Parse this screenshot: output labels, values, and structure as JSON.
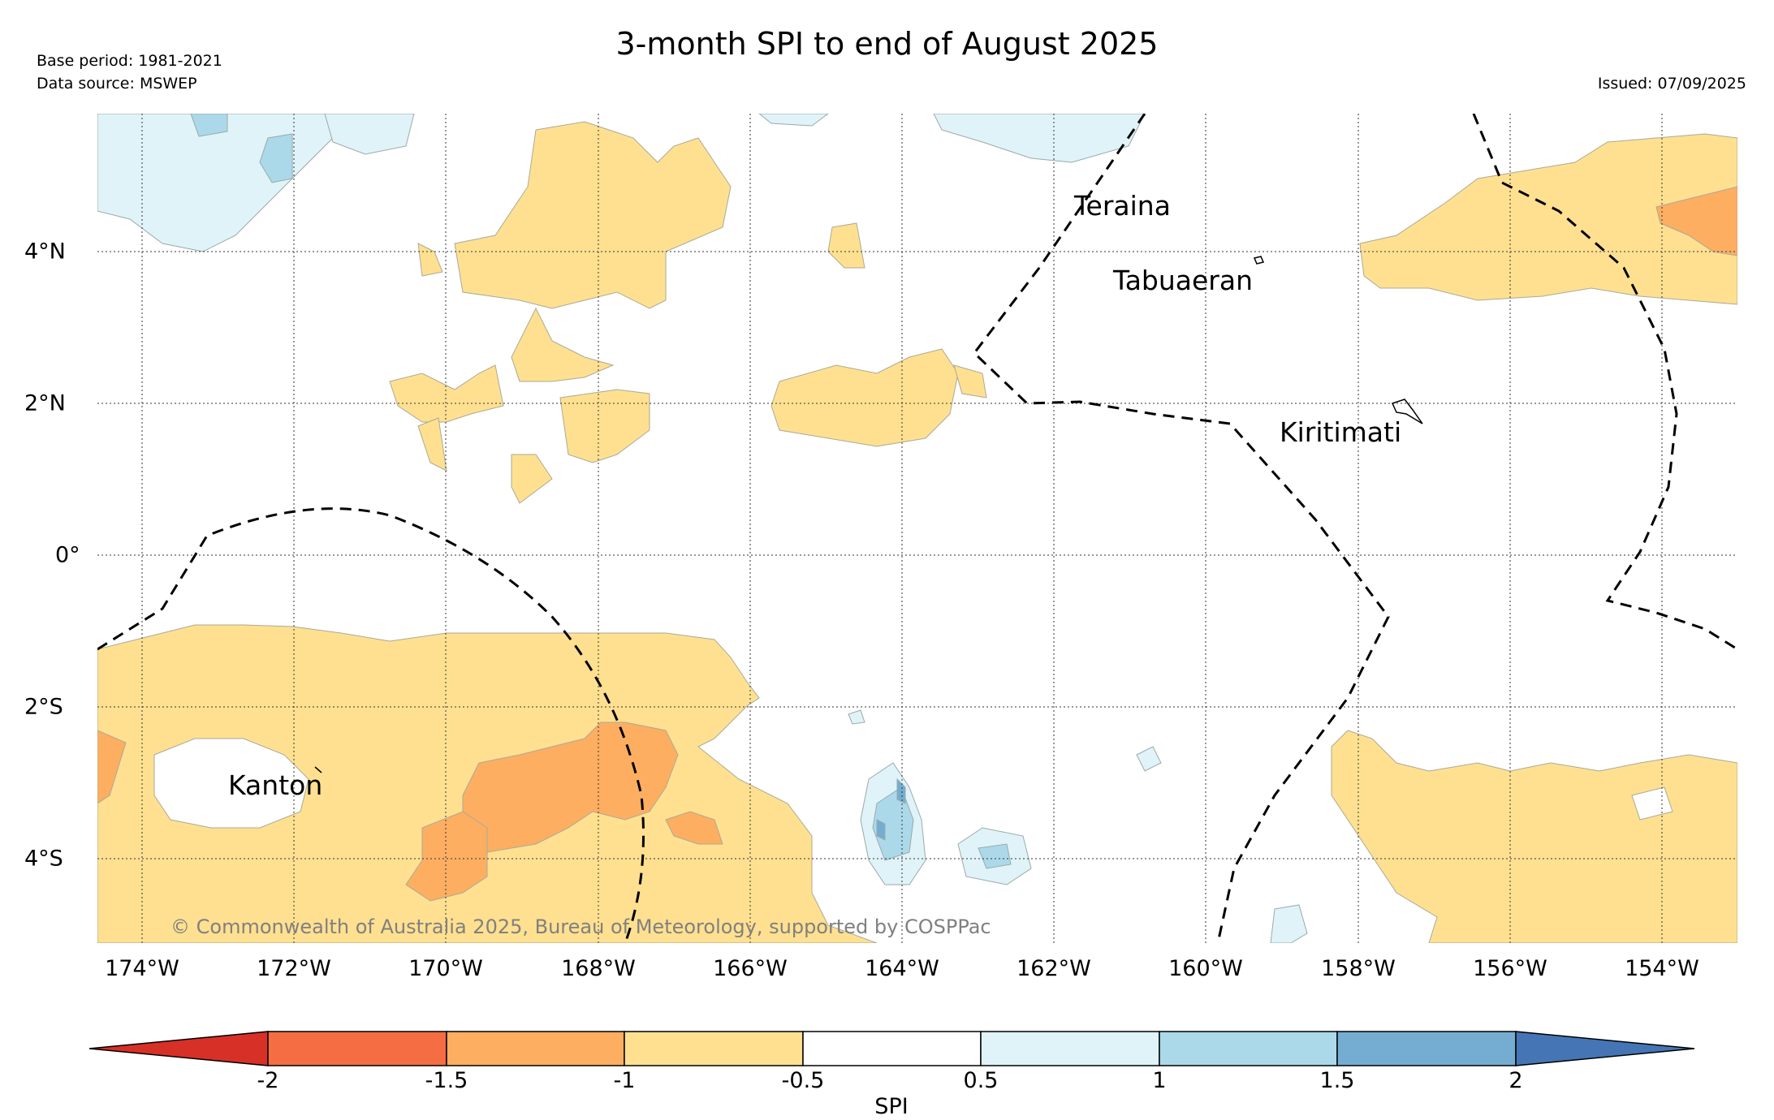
{
  "title": "3-month SPI to end of August 2025",
  "base_period": "Base period: 1981-2021",
  "data_source": "Data source: MSWEP",
  "issued": "Issued: 07/09/2025",
  "copyright": "© Commonwealth of Australia 2025, Bureau of Meteorology, supported by COSPPac",
  "x_ticks": [
    "174°W",
    "172°W",
    "170°W",
    "168°W",
    "166°W",
    "164°W",
    "162°W",
    "160°W",
    "158°W",
    "156°W",
    "154°W"
  ],
  "y_ticks": [
    "4°N",
    "2°N",
    "0°",
    "2°S",
    "4°S"
  ],
  "places": {
    "teraina": "Teraina",
    "tabuaeran": "Tabuaeran",
    "kiritimati": "Kiritimati",
    "kanton": "Kanton"
  },
  "colorbar": {
    "title": "SPI",
    "labels": [
      "-2",
      "-1.5",
      "-1",
      "-0.5",
      "0.5",
      "1",
      "1.5",
      "2"
    ],
    "colors": [
      "#d73027",
      "#f46d43",
      "#fdae61",
      "#fee090",
      "#ffffff",
      "#e0f3f8",
      "#abd9e9",
      "#74add1",
      "#4575b4"
    ]
  }
}
